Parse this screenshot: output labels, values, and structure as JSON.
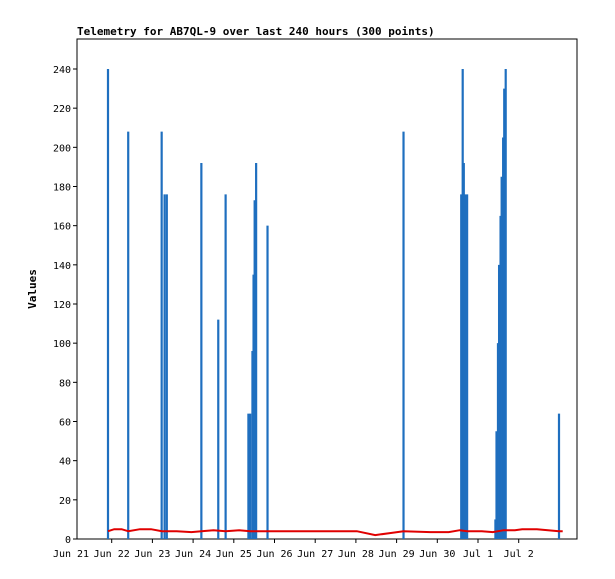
{
  "chart_data": {
    "type": "line",
    "title": "Telemetry for AB7QL-9 over last 240 hours (300 points)",
    "xlabel": "",
    "ylabel": "Values",
    "ylim": [
      0,
      255
    ],
    "y_ticks": [
      0,
      20,
      40,
      60,
      80,
      100,
      120,
      140,
      160,
      180,
      200,
      220,
      240
    ],
    "x_tick_labels": [
      "Jun 21",
      "Jun 22",
      "Jun 23",
      "Jun 24",
      "Jun 25",
      "Jun 26",
      "Jun 27",
      "Jun 28",
      "Jun 29",
      "Jun 30",
      "Jul 1",
      "Jul 2"
    ],
    "x_range_days": [
      0,
      11
    ],
    "grid": false,
    "legend": "none",
    "colors": {
      "blue_series": "#1f6fbf",
      "red_series": "#e00000",
      "axis": "#000000"
    },
    "series": [
      {
        "style": "spikes",
        "color": "#1f6fbf",
        "points": [
          [
            0.73,
            240
          ],
          [
            1.28,
            208
          ],
          [
            2.19,
            208
          ],
          [
            2.27,
            176
          ],
          [
            2.33,
            176
          ],
          [
            3.27,
            192
          ],
          [
            3.73,
            112
          ],
          [
            3.93,
            176
          ],
          [
            4.55,
            64
          ],
          [
            4.6,
            64
          ],
          [
            4.66,
            96
          ],
          [
            4.69,
            135
          ],
          [
            4.72,
            173
          ],
          [
            4.76,
            192
          ],
          [
            5.07,
            160
          ],
          [
            8.77,
            208
          ],
          [
            10.34,
            176
          ],
          [
            10.38,
            240
          ],
          [
            10.41,
            192
          ],
          [
            10.44,
            176
          ],
          [
            10.5,
            176
          ],
          [
            11.27,
            10
          ],
          [
            11.3,
            55
          ],
          [
            11.34,
            100
          ],
          [
            11.37,
            140
          ],
          [
            11.41,
            165
          ],
          [
            11.44,
            185
          ],
          [
            11.48,
            205
          ],
          [
            11.51,
            230
          ],
          [
            11.55,
            240
          ],
          [
            13.0,
            64
          ]
        ]
      },
      {
        "style": "line",
        "color": "#e00000",
        "points": [
          [
            0.73,
            4
          ],
          [
            0.9,
            5
          ],
          [
            1.1,
            5
          ],
          [
            1.28,
            4
          ],
          [
            1.6,
            5
          ],
          [
            1.9,
            5
          ],
          [
            2.2,
            4
          ],
          [
            2.6,
            4
          ],
          [
            3.0,
            3.5
          ],
          [
            3.27,
            4
          ],
          [
            3.6,
            4.5
          ],
          [
            3.93,
            4
          ],
          [
            4.3,
            4.5
          ],
          [
            4.6,
            4
          ],
          [
            5.07,
            4
          ],
          [
            6.0,
            4
          ],
          [
            7.0,
            4
          ],
          [
            7.5,
            4
          ],
          [
            8.0,
            2
          ],
          [
            8.4,
            3
          ],
          [
            8.77,
            4
          ],
          [
            9.5,
            3.5
          ],
          [
            10.0,
            3.5
          ],
          [
            10.3,
            4.5
          ],
          [
            10.5,
            4
          ],
          [
            10.9,
            4
          ],
          [
            11.2,
            3.5
          ],
          [
            11.5,
            4.5
          ],
          [
            11.8,
            4.5
          ],
          [
            12.0,
            5
          ],
          [
            12.4,
            5
          ],
          [
            12.7,
            4.5
          ],
          [
            13.0,
            4
          ],
          [
            13.1,
            4
          ]
        ]
      }
    ]
  }
}
